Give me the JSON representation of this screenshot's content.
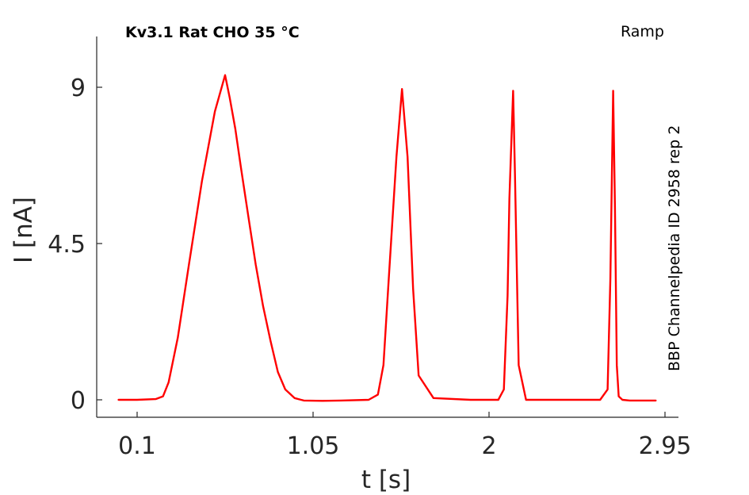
{
  "chart_data": {
    "type": "line",
    "title": "Kv3.1  Rat  CHO  35 °C",
    "protocol_label": "Ramp",
    "side_note": "BBP Channelpedia ID 2958 rep 2",
    "xlabel": "t [s]",
    "ylabel": "I [nA]",
    "xlim": [
      -0.1,
      3.0
    ],
    "ylim": [
      -0.5,
      10.5
    ],
    "x_ticks": [
      0.1,
      1.05,
      2,
      2.95
    ],
    "x_tick_labels": [
      "0.1",
      "1.05",
      "2",
      "2.95"
    ],
    "y_ticks": [
      0,
      4.5,
      9
    ],
    "y_tick_labels": [
      "0",
      "4.5",
      "9"
    ],
    "grid": false,
    "legend": "none",
    "series": [
      {
        "color": "#ff0000",
        "x": [
          0.0,
          0.1,
          0.2,
          0.24,
          0.27,
          0.32,
          0.38,
          0.45,
          0.52,
          0.575,
          0.6,
          0.63,
          0.66,
          0.7,
          0.74,
          0.78,
          0.82,
          0.86,
          0.9,
          0.95,
          1.0,
          1.1,
          1.2,
          1.35,
          1.4,
          1.43,
          1.46,
          1.5,
          1.53,
          1.56,
          1.59,
          1.62,
          1.7,
          1.9,
          2.05,
          2.08,
          2.1,
          2.11,
          2.13,
          2.14,
          2.16,
          2.2,
          2.4,
          2.6,
          2.64,
          2.655,
          2.67,
          2.68,
          2.69,
          2.7,
          2.72,
          2.76,
          2.9
        ],
        "y": [
          0.0,
          0.0,
          0.02,
          0.1,
          0.5,
          1.8,
          3.9,
          6.3,
          8.3,
          9.35,
          8.7,
          7.8,
          6.7,
          5.3,
          3.9,
          2.7,
          1.7,
          0.8,
          0.3,
          0.05,
          -0.02,
          -0.03,
          -0.02,
          0.0,
          0.15,
          1.0,
          3.6,
          7.0,
          8.95,
          7.0,
          3.2,
          0.7,
          0.05,
          0.0,
          0.0,
          0.3,
          3.0,
          5.8,
          8.9,
          6.5,
          1.0,
          0.0,
          0.0,
          0.0,
          0.3,
          3.5,
          8.9,
          5.5,
          1.0,
          0.1,
          0.0,
          -0.02,
          -0.02
        ]
      }
    ]
  }
}
